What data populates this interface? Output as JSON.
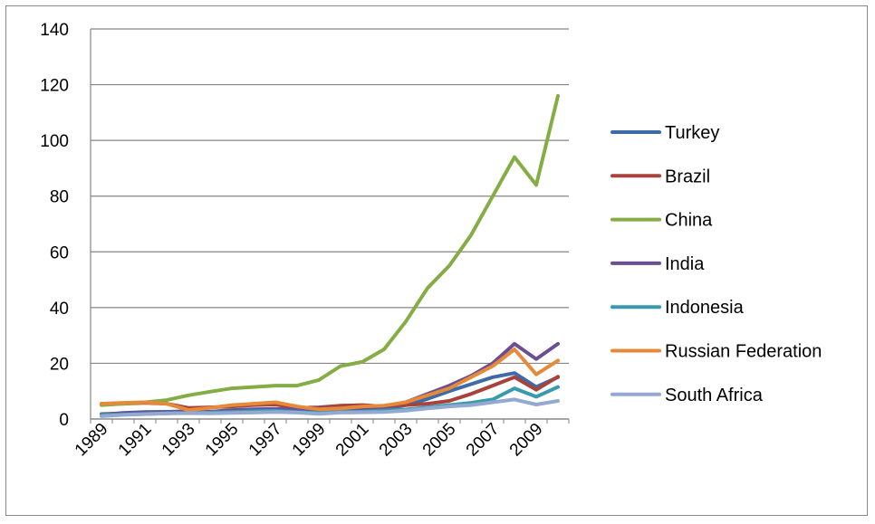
{
  "chart_data": {
    "type": "line",
    "title": "",
    "xlabel": "",
    "ylabel": "",
    "x": [
      "1989",
      "1990",
      "1991",
      "1992",
      "1993",
      "1994",
      "1995",
      "1996",
      "1997",
      "1998",
      "1999",
      "2000",
      "2001",
      "2002",
      "2003",
      "2004",
      "2005",
      "2006",
      "2007",
      "2008",
      "2009",
      "2010"
    ],
    "x_tick_labels": [
      "1989",
      "1991",
      "1993",
      "1995",
      "1997",
      "1999",
      "2001",
      "2003",
      "2005",
      "2007",
      "2009"
    ],
    "ylim": [
      0,
      140
    ],
    "y_ticks": [
      0,
      20,
      40,
      60,
      80,
      100,
      120,
      140
    ],
    "grid": "horizontal",
    "legend_position": "right",
    "series": [
      {
        "name": "Turkey",
        "color": "#3f6aa8",
        "values": [
          1.5,
          2.2,
          2.5,
          2.6,
          2.8,
          2.6,
          3.2,
          3.5,
          3.6,
          3.3,
          3.0,
          3.2,
          3.2,
          3.6,
          5.0,
          7.2,
          10.0,
          12.5,
          15.0,
          16.5,
          11.5,
          15.0
        ]
      },
      {
        "name": "Brazil",
        "color": "#a8423c",
        "values": [
          5.5,
          5.5,
          5.8,
          5.5,
          4.0,
          4.2,
          4.5,
          5.0,
          5.2,
          4.0,
          4.2,
          4.8,
          5.0,
          4.5,
          5.0,
          5.5,
          6.5,
          9.0,
          12.0,
          15.0,
          10.5,
          15.2
        ]
      },
      {
        "name": "China",
        "color": "#86ad45",
        "values": [
          5.0,
          5.5,
          6.0,
          6.8,
          8.5,
          9.8,
          11.0,
          11.5,
          12.0,
          12.0,
          14.0,
          19.0,
          20.5,
          25.0,
          35.0,
          47.0,
          55.0,
          66.0,
          80.0,
          94.0,
          84.0,
          116.0
        ]
      },
      {
        "name": "India",
        "color": "#6b4f94",
        "values": [
          1.8,
          2.0,
          2.2,
          2.3,
          2.5,
          2.5,
          3.0,
          3.2,
          3.5,
          3.6,
          3.7,
          3.8,
          3.9,
          4.5,
          6.0,
          9.0,
          12.0,
          15.5,
          20.0,
          27.0,
          21.5,
          27.0
        ]
      },
      {
        "name": "Indonesia",
        "color": "#3a9aad",
        "values": [
          1.5,
          1.6,
          1.8,
          2.0,
          2.2,
          2.3,
          2.5,
          2.8,
          3.0,
          2.5,
          2.3,
          2.6,
          2.7,
          3.0,
          3.4,
          4.2,
          5.0,
          5.8,
          7.0,
          11.0,
          8.0,
          11.5
        ]
      },
      {
        "name": "Russian Federation",
        "color": "#e68a3a",
        "values": [
          5.5,
          5.8,
          6.0,
          5.5,
          3.2,
          4.0,
          5.0,
          5.5,
          6.0,
          4.5,
          3.5,
          3.8,
          4.5,
          4.8,
          6.0,
          8.5,
          11.0,
          15.0,
          19.0,
          25.0,
          16.0,
          21.0
        ]
      },
      {
        "name": "South Africa",
        "color": "#93a9d1",
        "values": [
          1.0,
          1.5,
          1.8,
          2.0,
          2.1,
          2.0,
          2.2,
          2.3,
          2.5,
          2.3,
          1.9,
          2.3,
          2.4,
          2.5,
          3.0,
          3.8,
          4.5,
          5.0,
          6.0,
          7.0,
          5.2,
          6.5
        ]
      }
    ]
  }
}
